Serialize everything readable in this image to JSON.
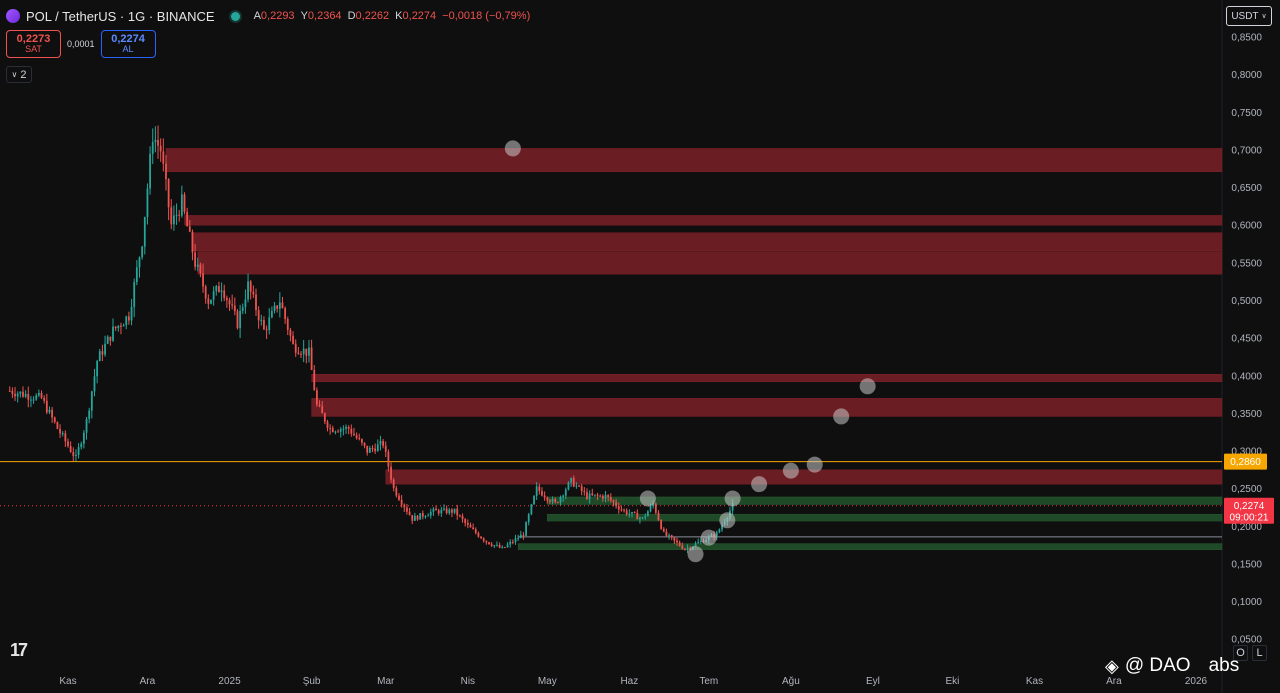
{
  "header": {
    "symbol": "POL / TetherUS · 1G · BINANCE",
    "icon": "pol-coin-icon",
    "ohlc": [
      {
        "k": "A",
        "v": "0,2293"
      },
      {
        "k": "Y",
        "v": "0,2364"
      },
      {
        "k": "D",
        "v": "0,2262"
      },
      {
        "k": "K",
        "v": "0,2274"
      }
    ],
    "change": "−0,0018 (−0,79%)"
  },
  "trade": {
    "sell_price": "0,2273",
    "sell_label": "SAT",
    "spread": "0,0001",
    "buy_price": "0,2274",
    "buy_label": "AL"
  },
  "indicators_toggle": "2",
  "currency_button": "USDT",
  "scale_buttons": [
    "O",
    "L"
  ],
  "watermark": {
    "text": "@ DAO",
    "suffix": "abs",
    "icon": "binance-icon"
  },
  "chart_data": {
    "type": "candlestick",
    "y_ticks": [
      0.85,
      0.8,
      0.75,
      0.7,
      0.65,
      0.6,
      0.55,
      0.5,
      0.45,
      0.4,
      0.35,
      0.3,
      0.25,
      0.2,
      0.15,
      0.1,
      0.05
    ],
    "y_tick_labels": [
      "0,8500",
      "0,8000",
      "0,7500",
      "0,7000",
      "0,6500",
      "0,6000",
      "0,5500",
      "0,5000",
      "0,4500",
      "0,4000",
      "0,3500",
      "0,3000",
      "0,2500",
      "0,2000",
      "0,1500",
      "0,1000",
      "0,0500"
    ],
    "ylim": [
      0.0,
      0.87
    ],
    "x_tick_labels": [
      "Kas",
      "Ara",
      "2025",
      "Şub",
      "Mar",
      "Nis",
      "May",
      "Haz",
      "Tem",
      "Ağu",
      "Eyl",
      "Eki",
      "Kas",
      "Ara",
      "2026"
    ],
    "x_tick_dates": [
      "2024-11-01",
      "2024-12-01",
      "2025-01-01",
      "2025-02-01",
      "2025-03-01",
      "2025-04-01",
      "2025-05-01",
      "2025-06-01",
      "2025-07-01",
      "2025-08-01",
      "2025-09-01",
      "2025-10-01",
      "2025-11-01",
      "2025-12-01",
      "2026-01-01"
    ],
    "xlim": [
      "2024-10-10",
      "2026-01-12"
    ],
    "price_path": [
      [
        "2024-10-10",
        0.38
      ],
      [
        "2024-10-22",
        0.37
      ],
      [
        "2024-10-28",
        0.33
      ],
      [
        "2024-11-04",
        0.29
      ],
      [
        "2024-11-08",
        0.34
      ],
      [
        "2024-11-12",
        0.42
      ],
      [
        "2024-11-18",
        0.46
      ],
      [
        "2024-11-24",
        0.48
      ],
      [
        "2024-11-29",
        0.58
      ],
      [
        "2024-12-03",
        0.72
      ],
      [
        "2024-12-06",
        0.7
      ],
      [
        "2024-12-10",
        0.6
      ],
      [
        "2024-12-14",
        0.63
      ],
      [
        "2024-12-19",
        0.55
      ],
      [
        "2024-12-24",
        0.5
      ],
      [
        "2024-12-29",
        0.52
      ],
      [
        "2025-01-04",
        0.47
      ],
      [
        "2025-01-08",
        0.52
      ],
      [
        "2025-01-14",
        0.46
      ],
      [
        "2025-01-20",
        0.5
      ],
      [
        "2025-01-25",
        0.44
      ],
      [
        "2025-01-31",
        0.43
      ],
      [
        "2025-02-03",
        0.36
      ],
      [
        "2025-02-08",
        0.33
      ],
      [
        "2025-02-15",
        0.33
      ],
      [
        "2025-02-22",
        0.3
      ],
      [
        "2025-02-28",
        0.31
      ],
      [
        "2025-03-04",
        0.25
      ],
      [
        "2025-03-11",
        0.21
      ],
      [
        "2025-03-19",
        0.22
      ],
      [
        "2025-03-27",
        0.22
      ],
      [
        "2025-04-01",
        0.2
      ],
      [
        "2025-04-08",
        0.18
      ],
      [
        "2025-04-14",
        0.17
      ],
      [
        "2025-04-22",
        0.19
      ],
      [
        "2025-04-27",
        0.25
      ],
      [
        "2025-05-04",
        0.23
      ],
      [
        "2025-05-10",
        0.26
      ],
      [
        "2025-05-16",
        0.24
      ],
      [
        "2025-05-23",
        0.24
      ],
      [
        "2025-05-30",
        0.22
      ],
      [
        "2025-06-06",
        0.21
      ],
      [
        "2025-06-10",
        0.23
      ],
      [
        "2025-06-14",
        0.19
      ],
      [
        "2025-06-22",
        0.17
      ],
      [
        "2025-06-28",
        0.18
      ],
      [
        "2025-07-04",
        0.19
      ],
      [
        "2025-07-10",
        0.2274
      ]
    ],
    "price_lines": [
      {
        "label": "0,2860",
        "value": 0.286,
        "color": "#f7a600"
      },
      {
        "label": "0,2274",
        "value": 0.2274,
        "color": "#f23645",
        "sublabel": "09:00:21"
      }
    ],
    "extra_level": 0.186,
    "resistance_zones": [
      {
        "from": "2024-12-08",
        "low": 0.671,
        "high": 0.702
      },
      {
        "from": "2024-12-15",
        "low": 0.6,
        "high": 0.613
      },
      {
        "from": "2024-12-18",
        "low": 0.566,
        "high": 0.59
      },
      {
        "from": "2024-12-20",
        "low": 0.535,
        "high": 0.565
      },
      {
        "from": "2025-02-01",
        "low": 0.392,
        "high": 0.402
      },
      {
        "from": "2025-02-01",
        "low": 0.346,
        "high": 0.37
      },
      {
        "from": "2025-03-01",
        "low": 0.256,
        "high": 0.275
      }
    ],
    "support_zones": [
      {
        "from": "2025-05-01",
        "low": 0.229,
        "high": 0.239
      },
      {
        "from": "2025-05-01",
        "low": 0.207,
        "high": 0.216
      },
      {
        "from": "2025-04-20",
        "low": 0.169,
        "high": 0.177
      }
    ],
    "markers": [
      [
        "2025-04-18",
        0.702
      ],
      [
        "2025-06-08",
        0.237
      ],
      [
        "2025-06-26",
        0.163
      ],
      [
        "2025-07-01",
        0.185
      ],
      [
        "2025-07-08",
        0.208
      ],
      [
        "2025-07-10",
        0.237
      ],
      [
        "2025-07-20",
        0.256
      ],
      [
        "2025-08-01",
        0.274
      ],
      [
        "2025-08-10",
        0.282
      ],
      [
        "2025-08-20",
        0.346
      ],
      [
        "2025-08-30",
        0.386
      ]
    ]
  }
}
